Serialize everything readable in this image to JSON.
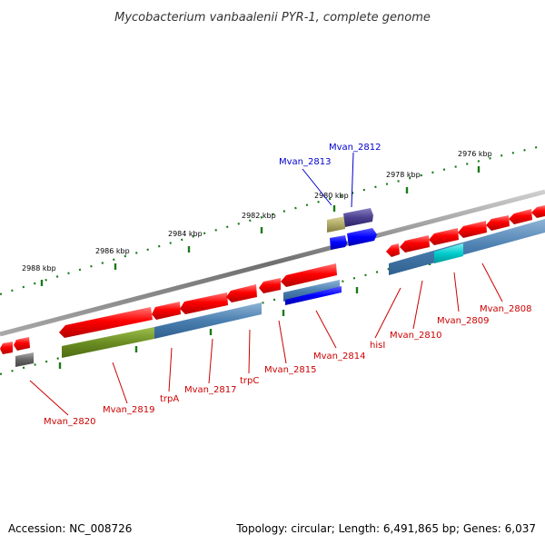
{
  "title": "Mycobacterium vanbaalenii PYR-1, complete genome",
  "footer": {
    "accession": "Accession: NC_008726",
    "summary": "Topology: circular; Length: 6,491,865 bp; Genes: 6,037"
  },
  "ticks": [
    "2976 kbp",
    "2978 kbp",
    "2980 kbp",
    "2982 kbp",
    "2984 kbp",
    "2986 kbp",
    "2988 kbp"
  ],
  "labels": {
    "mvan2812": "Mvan_2812",
    "mvan2813": "Mvan_2813",
    "mvan2808": "Mvan_2808",
    "mvan2809": "Mvan_2809",
    "mvan2810": "Mvan_2810",
    "hisI": "hisI",
    "mvan2814": "Mvan_2814",
    "mvan2815": "Mvan_2815",
    "trpC": "trpC",
    "mvan2817": "Mvan_2817",
    "trpA": "trpA",
    "mvan2819": "Mvan_2819",
    "mvan2820": "Mvan_2820"
  },
  "colors": {
    "forward_gene": "#ff0000",
    "reverse_gene": "#ff0000",
    "blue_gene": "#0000ff",
    "steel_gene": "#4a7fb0",
    "olive_gene": "#6b8e23",
    "cyan_gene": "#00cccc",
    "label_red": "#cc0000",
    "label_blue": "#0000cc",
    "tick_green": "#1a7a1a",
    "backbone": "#888888"
  }
}
